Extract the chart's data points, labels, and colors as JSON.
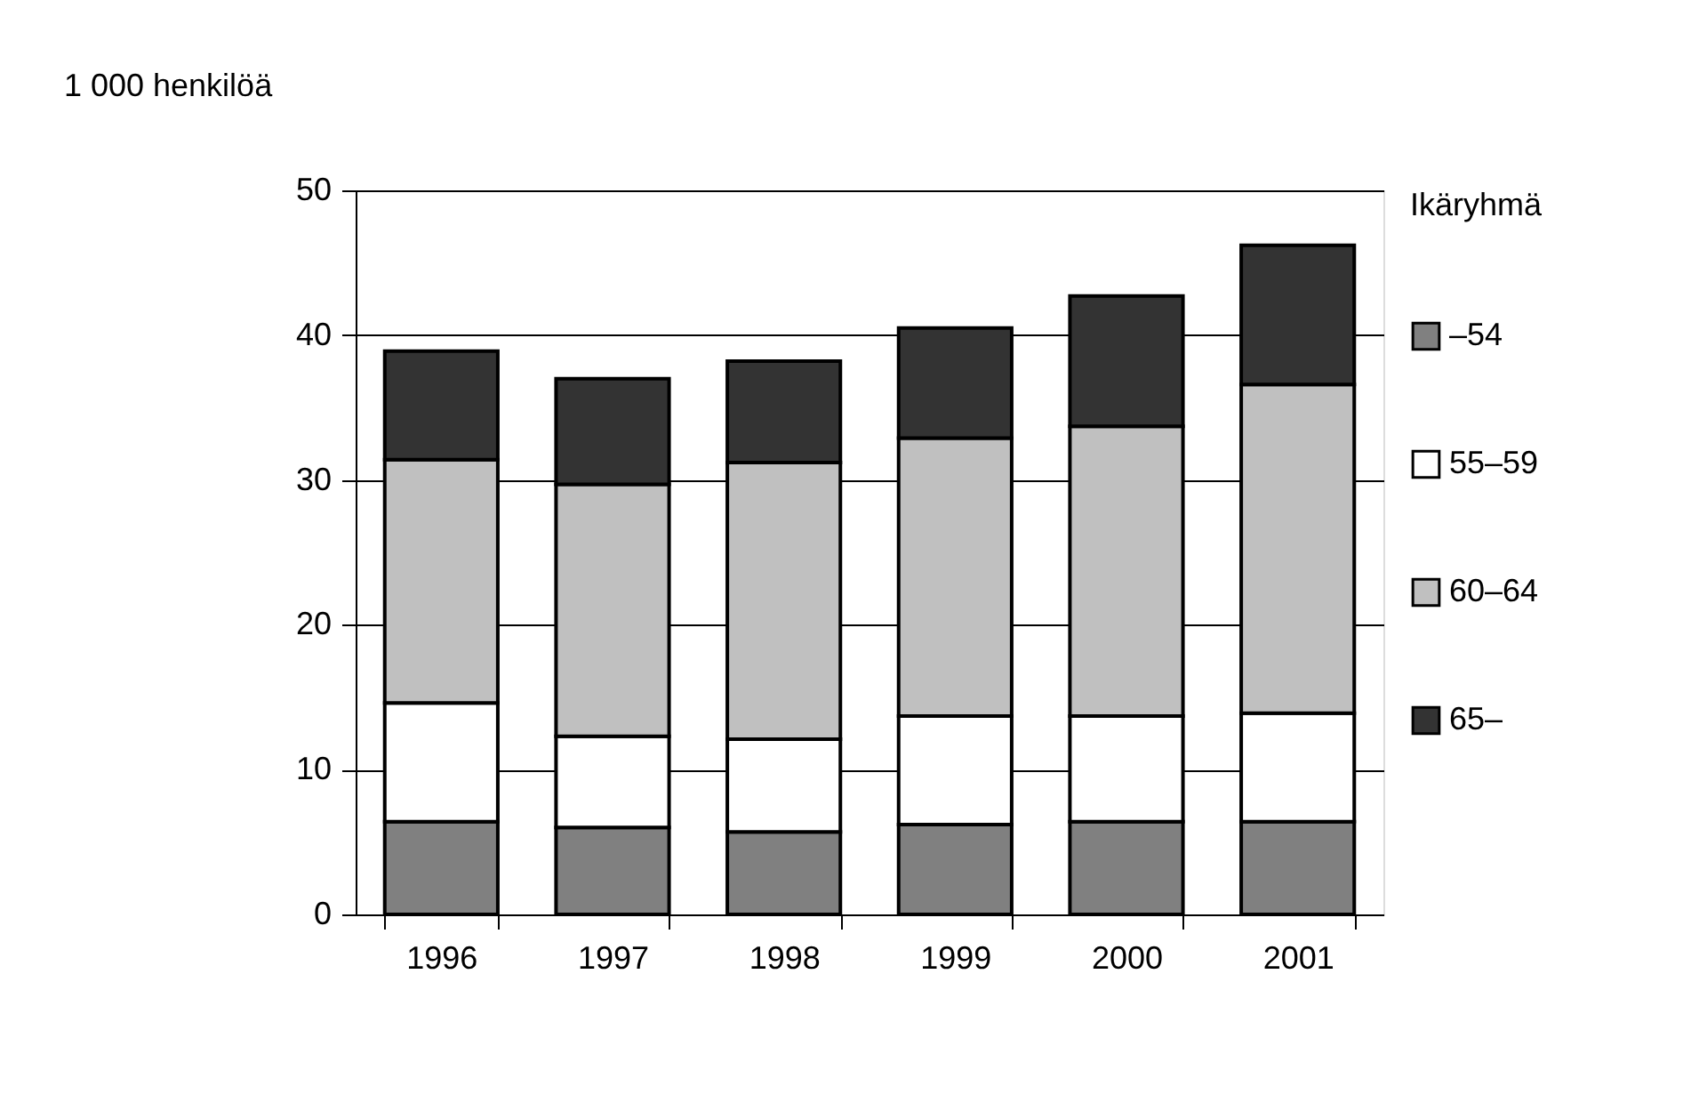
{
  "chart_data": {
    "type": "bar",
    "title": "1 000 henkilöä",
    "legend_title": "Ikäryhmä",
    "stacked": true,
    "categories": [
      "1996",
      "1997",
      "1998",
      "1999",
      "2000",
      "2001"
    ],
    "series": [
      {
        "name": "–54",
        "color": "#808080",
        "values": [
          6.4,
          6.0,
          5.7,
          6.2,
          6.4,
          6.4
        ]
      },
      {
        "name": "55–59",
        "color": "#ffffff",
        "values": [
          8.2,
          6.3,
          6.4,
          7.5,
          7.3,
          7.5
        ]
      },
      {
        "name": "60–64",
        "color": "#c0c0c0",
        "values": [
          16.8,
          17.4,
          19.1,
          19.2,
          20.0,
          22.7
        ]
      },
      {
        "name": "65–",
        "color": "#333333",
        "values": [
          7.5,
          7.3,
          7.0,
          7.6,
          9.0,
          9.6
        ]
      }
    ],
    "ylim": [
      0,
      50
    ],
    "yticks": [
      0,
      10,
      20,
      30,
      40,
      50
    ],
    "grid": "y",
    "legend": "right"
  }
}
